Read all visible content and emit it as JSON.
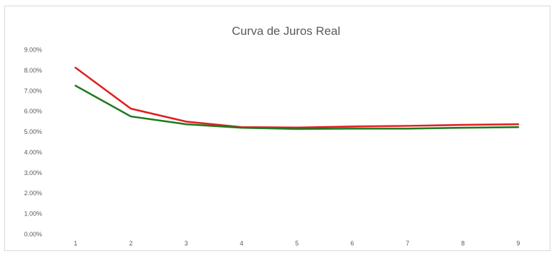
{
  "chart_data": {
    "type": "line",
    "title": "Curva de Juros Real",
    "xlabel": "",
    "ylabel": "",
    "x": [
      1,
      2,
      3,
      4,
      5,
      6,
      7,
      8,
      9
    ],
    "ylim": [
      0,
      0.09
    ],
    "y_ticks": [
      "0.00%",
      "1.00%",
      "2.00%",
      "3.00%",
      "4.00%",
      "5.00%",
      "6.00%",
      "7.00%",
      "8.00%",
      "9.00%"
    ],
    "x_ticks": [
      "1",
      "2",
      "3",
      "4",
      "5",
      "6",
      "7",
      "8",
      "9"
    ],
    "grid": false,
    "legend": "none",
    "series": [
      {
        "color": "#e02020",
        "values": [
          0.0813,
          0.0613,
          0.055,
          0.0523,
          0.0521,
          0.0526,
          0.0529,
          0.0534,
          0.0537
        ]
      },
      {
        "color": "#1f7a1f",
        "values": [
          0.0725,
          0.0575,
          0.0537,
          0.052,
          0.0514,
          0.0516,
          0.0516,
          0.052,
          0.0523
        ]
      }
    ]
  }
}
